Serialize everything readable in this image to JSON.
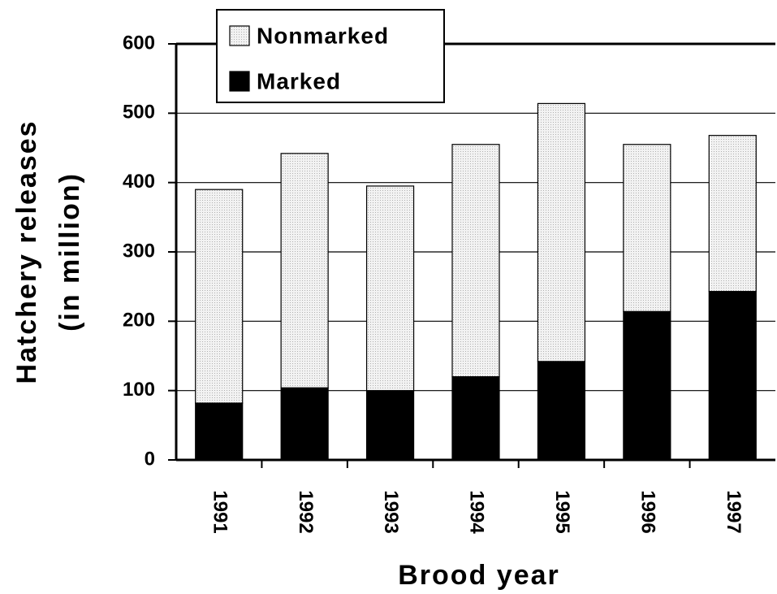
{
  "chart_data": {
    "type": "stacked_bar",
    "x_label": "Brood year",
    "y_label": [
      "Hatchery releases",
      "(in million)"
    ],
    "categories": [
      "1991",
      "1992",
      "1993",
      "1994",
      "1995",
      "1996",
      "1997"
    ],
    "series": [
      {
        "name": "Marked",
        "color": "#000000",
        "values": [
          82,
          104,
          100,
          120,
          142,
          214,
          243
        ]
      },
      {
        "name": "Nonmarked",
        "color": "#e6e6e6",
        "values": [
          308,
          338,
          295,
          335,
          372,
          241,
          225
        ]
      }
    ],
    "ylim": [
      0,
      600
    ],
    "yticks": [
      0,
      100,
      200,
      300,
      400,
      500,
      600
    ],
    "grid": true
  }
}
